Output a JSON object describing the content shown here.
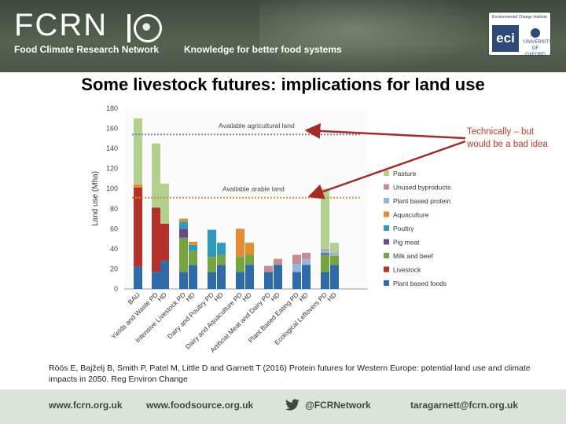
{
  "header": {
    "brand": "FCRN",
    "org_name": "Food Climate Research Network",
    "tagline": "Knowledge for better food systems",
    "partner_top": "Environmental Change Institute",
    "partner_short": "eci",
    "partner_university": "UNIVERSITY OF OXFORD"
  },
  "slide": {
    "title": "Some livestock futures: implications for land use",
    "note": "Technically – but would be a bad idea",
    "citation": "Röös E, Bajželj B, Smith P, Patel M, Little D and Garnett T (2016) Protein futures for Western Europe: potential land use and climate impacts in 2050. Reg Environ Change"
  },
  "footer": {
    "site1": "www.fcrn.org.uk",
    "site2": "www.foodsource.org.uk",
    "twitter": "@FCRNetwork",
    "email": "taragarnett@fcrn.org.uk"
  },
  "chart_data": {
    "type": "bar",
    "stacked": true,
    "ylabel": "Land use (Mha)",
    "ylim": [
      0,
      180
    ],
    "yticks": [
      0,
      20,
      40,
      60,
      80,
      100,
      120,
      140,
      160,
      180
    ],
    "categories": [
      "BAU",
      "PD",
      "HD",
      "PD",
      "HD",
      "PD",
      "HD",
      "PD",
      "HD",
      "PD",
      "HD",
      "PD",
      "HD",
      "PD",
      "HD"
    ],
    "scenario_labels": [
      {
        "label": "Yields and Waste PD",
        "index": 1
      },
      {
        "label": "Intensive Livestock PD",
        "index": 3
      },
      {
        "label": "Dairy and Poultry PD",
        "index": 5
      },
      {
        "label": "Dairy and Aquaculture PD",
        "index": 7
      },
      {
        "label": "Artificial Meat and Dairy PD",
        "index": 9
      },
      {
        "label": "Plant Based Eating PD",
        "index": 11
      },
      {
        "label": "Ecological Leftovers PD",
        "index": 13
      }
    ],
    "series": [
      {
        "name": "Plant based foods",
        "color": "#2e6ba8",
        "values": [
          22,
          17,
          28,
          17,
          24,
          17,
          24,
          17,
          24,
          17,
          24,
          17,
          24,
          17,
          24
        ]
      },
      {
        "name": "Livestock",
        "color": "#b5312c",
        "values": [
          79,
          64,
          37,
          0,
          0,
          0,
          0,
          0,
          0,
          0,
          0,
          0,
          0,
          0,
          0
        ]
      },
      {
        "name": "Milk and beef",
        "color": "#76a540",
        "values": [
          0,
          0,
          0,
          34,
          14,
          15,
          10,
          15,
          10,
          0,
          0,
          0,
          0,
          17,
          9
        ]
      },
      {
        "name": "Pig meat",
        "color": "#6b4a8c",
        "values": [
          0,
          0,
          0,
          9,
          0,
          0,
          0,
          0,
          0,
          0,
          0,
          0,
          0,
          1,
          0
        ]
      },
      {
        "name": "Poultry",
        "color": "#2c9bbf",
        "values": [
          0,
          0,
          0,
          7,
          6,
          27,
          12,
          0,
          0,
          0,
          0,
          0,
          0,
          1,
          0
        ]
      },
      {
        "name": "Aquaculture",
        "color": "#e58c32",
        "values": [
          3,
          0,
          0,
          3,
          3,
          0,
          0,
          28,
          12,
          0,
          0,
          0,
          0,
          0,
          0
        ]
      },
      {
        "name": "Plant based protein",
        "color": "#93b6d9",
        "values": [
          0,
          0,
          0,
          0,
          0,
          0,
          0,
          0,
          0,
          0,
          0,
          8,
          6,
          3,
          3
        ]
      },
      {
        "name": "Unused byproducts",
        "color": "#c98b8f",
        "values": [
          0,
          0,
          0,
          0,
          0,
          0,
          0,
          0,
          0,
          6,
          6,
          9,
          6,
          1,
          0
        ]
      },
      {
        "name": "Pasture",
        "color": "#b3d18e",
        "values": [
          66,
          64,
          40,
          0,
          0,
          0,
          0,
          0,
          0,
          0,
          0,
          0,
          0,
          60,
          10
        ]
      }
    ],
    "reference_lines": [
      {
        "label": "Available agricultural land",
        "y": 154,
        "color": "#7f7fb0"
      },
      {
        "label": "Available arable land",
        "y": 91,
        "color": "#e58c32"
      }
    ],
    "legend_position": "right",
    "grid": false
  }
}
